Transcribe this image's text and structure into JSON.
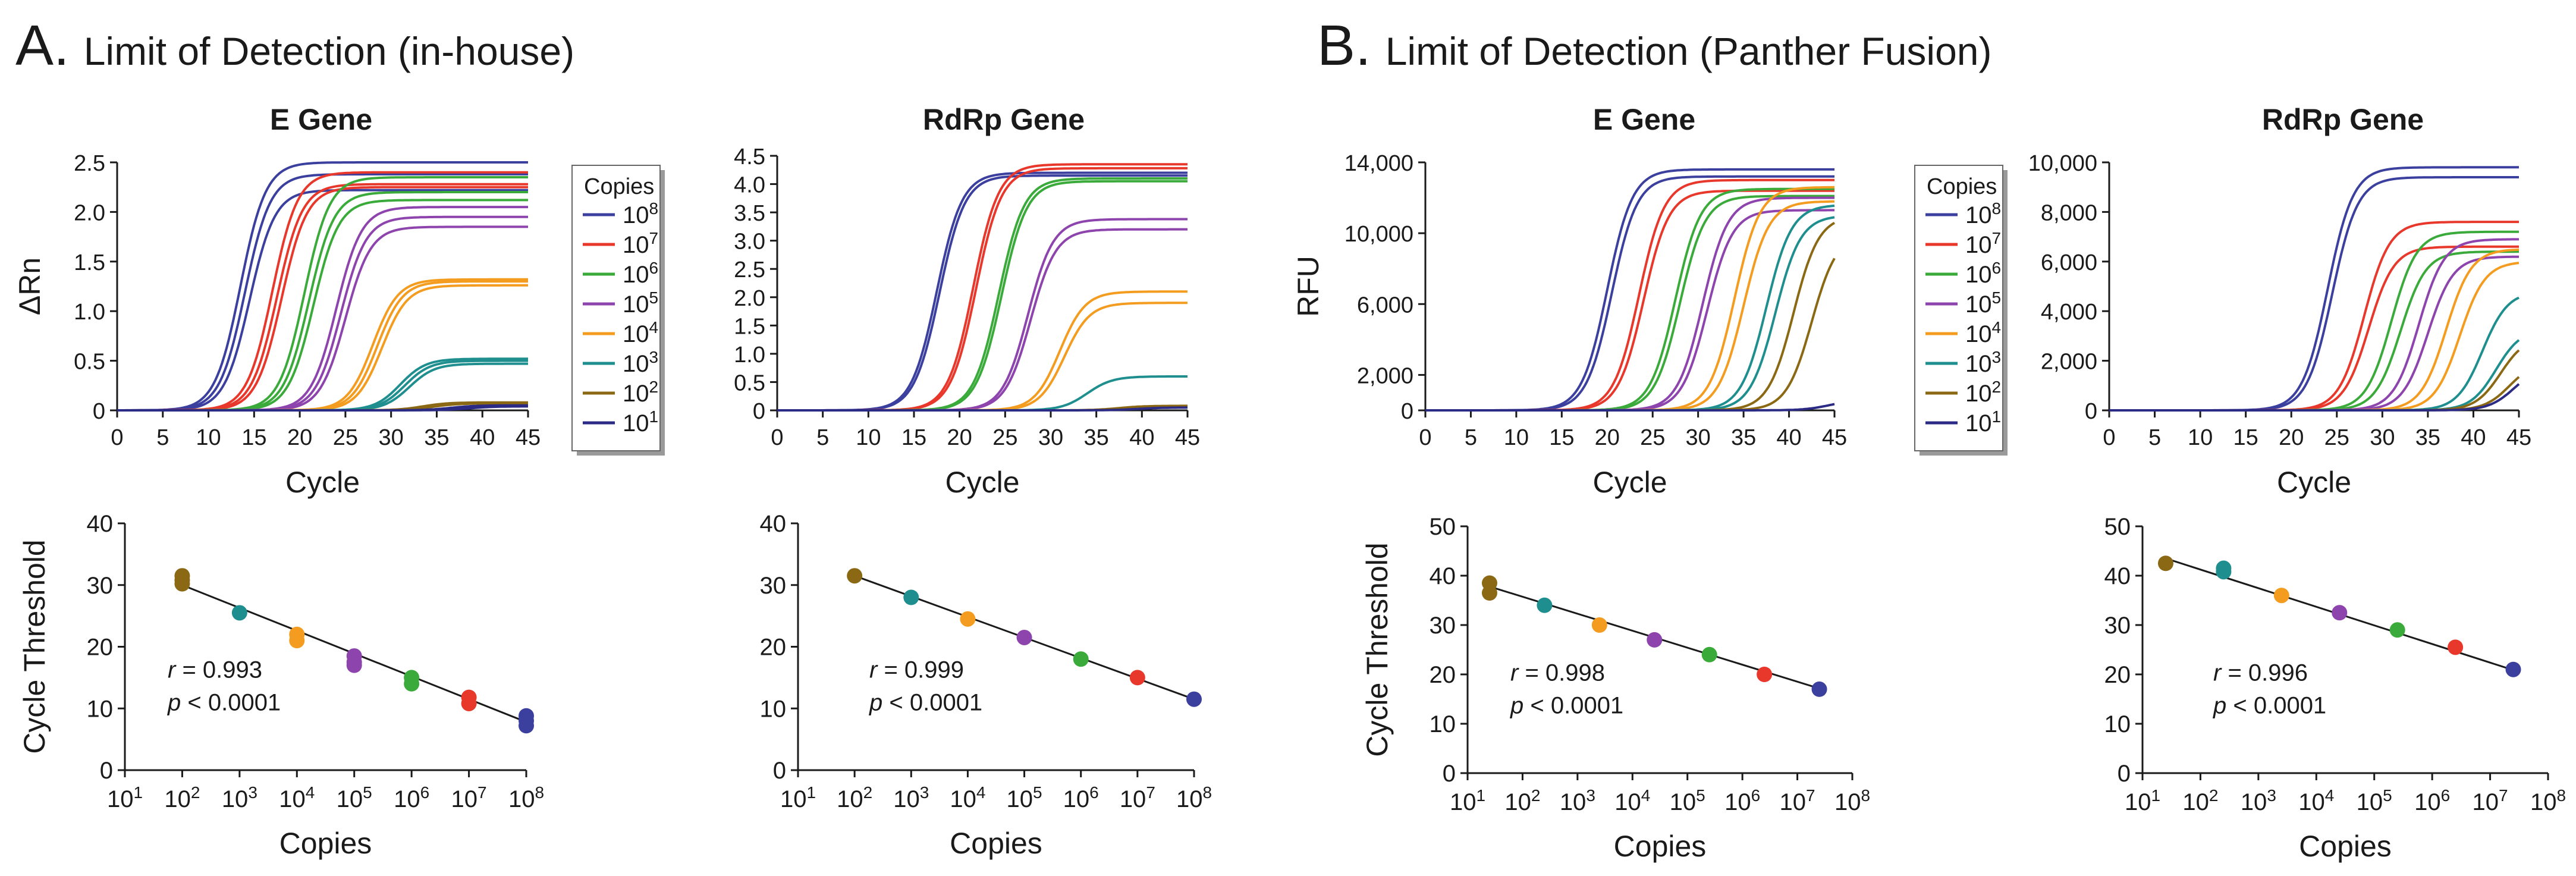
{
  "panels": [
    {
      "letter": "A.",
      "title": "Limit of Detection (in-house)"
    },
    {
      "letter": "B.",
      "title": "Limit of Detection (Panther Fusion)"
    }
  ],
  "legend_title": "Copies",
  "legend_entries": [
    "10^8",
    "10^7",
    "10^6",
    "10^5",
    "10^4",
    "10^3",
    "10^2",
    "10^1"
  ],
  "series_colors": {
    "10^8": "#3b3f9e",
    "10^7": "#e8382c",
    "10^6": "#3aaa3a",
    "10^5": "#8e44ad",
    "10^4": "#f39c1f",
    "10^3": "#1f8e8e",
    "10^2": "#8b6914",
    "10^1": "#2b2b85"
  },
  "chart_data": [
    {
      "id": "a-egene-amp",
      "type": "line",
      "title": "E Gene",
      "xlabel": "Cycle",
      "ylabel": "ΔRn",
      "xlim": [
        0,
        45
      ],
      "ylim": [
        0,
        2.5
      ],
      "xticks": [
        0,
        5,
        10,
        15,
        20,
        25,
        30,
        35,
        40,
        45
      ],
      "yticks": [
        0,
        0.5,
        1.0,
        1.5,
        2.0,
        2.5
      ],
      "ytick_labels": [
        "0",
        "0.5",
        "1.0",
        "1.5",
        "2.0",
        "2.5"
      ],
      "series": [
        {
          "name": "10^8",
          "replicates": [
            {
              "ct": 13.5,
              "plateau": 2.5
            },
            {
              "ct": 14.0,
              "plateau": 2.38
            },
            {
              "ct": 14.5,
              "plateau": 2.22
            }
          ]
        },
        {
          "name": "10^7",
          "replicates": [
            {
              "ct": 17.0,
              "plateau": 2.4
            },
            {
              "ct": 17.5,
              "plateau": 2.28
            },
            {
              "ct": 18.0,
              "plateau": 2.25
            }
          ]
        },
        {
          "name": "10^6",
          "replicates": [
            {
              "ct": 20.5,
              "plateau": 2.35
            },
            {
              "ct": 21.0,
              "plateau": 2.2
            },
            {
              "ct": 21.5,
              "plateau": 2.12
            }
          ]
        },
        {
          "name": "10^5",
          "replicates": [
            {
              "ct": 24.0,
              "plateau": 2.05
            },
            {
              "ct": 24.5,
              "plateau": 1.95
            },
            {
              "ct": 25.0,
              "plateau": 1.85
            }
          ]
        },
        {
          "name": "10^4",
          "replicates": [
            {
              "ct": 28.0,
              "plateau": 1.32
            },
            {
              "ct": 28.5,
              "plateau": 1.3
            },
            {
              "ct": 29.0,
              "plateau": 1.26
            }
          ]
        },
        {
          "name": "10^3",
          "replicates": [
            {
              "ct": 31.0,
              "plateau": 0.52
            },
            {
              "ct": 31.5,
              "plateau": 0.5
            },
            {
              "ct": 32.0,
              "plateau": 0.47
            }
          ]
        },
        {
          "name": "10^2",
          "replicates": [
            {
              "ct": 33.5,
              "plateau": 0.08
            },
            {
              "ct": 34.5,
              "plateau": 0.07
            }
          ]
        },
        {
          "name": "10^1",
          "replicates": [
            {
              "ct": 36.5,
              "plateau": 0.05
            },
            {
              "ct": 38.5,
              "plateau": 0.04
            }
          ]
        }
      ]
    },
    {
      "id": "a-rdrp-amp",
      "type": "line",
      "title": "RdRp Gene",
      "xlabel": "Cycle",
      "ylabel": "",
      "xlim": [
        0,
        45
      ],
      "ylim": [
        0,
        4.5
      ],
      "xticks": [
        0,
        5,
        10,
        15,
        20,
        25,
        30,
        35,
        40,
        45
      ],
      "yticks": [
        0,
        0.5,
        1.0,
        1.5,
        2.0,
        2.5,
        3.0,
        3.5,
        4.0,
        4.5
      ],
      "ytick_labels": [
        "0",
        "0.5",
        "1.0",
        "1.5",
        "2.0",
        "2.5",
        "3.0",
        "3.5",
        "4.0",
        "4.5"
      ],
      "series": [
        {
          "name": "10^8",
          "replicates": [
            {
              "ct": 17.5,
              "plateau": 4.2
            },
            {
              "ct": 17.8,
              "plateau": 4.15
            }
          ]
        },
        {
          "name": "10^7",
          "replicates": [
            {
              "ct": 21.5,
              "plateau": 4.35
            },
            {
              "ct": 21.8,
              "plateau": 4.28
            }
          ]
        },
        {
          "name": "10^6",
          "replicates": [
            {
              "ct": 24.3,
              "plateau": 4.1
            },
            {
              "ct": 24.6,
              "plateau": 4.05
            }
          ]
        },
        {
          "name": "10^5",
          "replicates": [
            {
              "ct": 27.5,
              "plateau": 3.38
            },
            {
              "ct": 27.8,
              "plateau": 3.2
            }
          ]
        },
        {
          "name": "10^4",
          "replicates": [
            {
              "ct": 31.0,
              "plateau": 2.1
            },
            {
              "ct": 31.5,
              "plateau": 1.9
            }
          ]
        },
        {
          "name": "10^3",
          "replicates": [
            {
              "ct": 34.0,
              "plateau": 0.6
            }
          ]
        },
        {
          "name": "10^2",
          "replicates": [
            {
              "ct": 37.5,
              "plateau": 0.08
            }
          ]
        },
        {
          "name": "10^1",
          "replicates": [
            {
              "ct": 39.5,
              "plateau": 0.05
            }
          ]
        }
      ]
    },
    {
      "id": "b-egene-amp",
      "type": "line",
      "title": "E Gene",
      "xlabel": "Cycle",
      "ylabel": "RFU",
      "xlim": [
        0,
        45
      ],
      "ylim": [
        0,
        14000
      ],
      "xticks": [
        0,
        5,
        10,
        15,
        20,
        25,
        30,
        35,
        40,
        45
      ],
      "yticks": [
        0,
        2000,
        6000,
        10000,
        14000
      ],
      "ytick_labels": [
        "0",
        "2,000",
        "6,000",
        "10,000",
        "14,000"
      ],
      "series": [
        {
          "name": "10^8",
          "replicates": [
            {
              "ct": 20.0,
              "plateau": 13600
            },
            {
              "ct": 20.5,
              "plateau": 13200
            }
          ]
        },
        {
          "name": "10^7",
          "replicates": [
            {
              "ct": 23.5,
              "plateau": 13000
            },
            {
              "ct": 24.0,
              "plateau": 12400
            }
          ]
        },
        {
          "name": "10^6",
          "replicates": [
            {
              "ct": 27.5,
              "plateau": 12500
            },
            {
              "ct": 28.0,
              "plateau": 12100
            }
          ]
        },
        {
          "name": "10^5",
          "replicates": [
            {
              "ct": 30.5,
              "plateau": 12000
            },
            {
              "ct": 31.0,
              "plateau": 11300
            }
          ]
        },
        {
          "name": "10^4",
          "replicates": [
            {
              "ct": 34.0,
              "plateau": 12600
            },
            {
              "ct": 35.0,
              "plateau": 11800
            }
          ]
        },
        {
          "name": "10^3",
          "replicates": [
            {
              "ct": 37.5,
              "plateau": 11600
            },
            {
              "ct": 38.5,
              "plateau": 11000
            }
          ]
        },
        {
          "name": "10^2",
          "replicates": [
            {
              "ct": 40.5,
              "plateau": 11000
            },
            {
              "ct": 42.5,
              "plateau": 10000
            }
          ]
        },
        {
          "name": "10^1",
          "replicates": [
            {
              "ct": 44.5,
              "plateau": 600
            }
          ]
        }
      ]
    },
    {
      "id": "b-rdrp-amp",
      "type": "line",
      "title": "RdRp Gene",
      "xlabel": "Cycle",
      "ylabel": "",
      "xlim": [
        0,
        45
      ],
      "ylim": [
        0,
        10000
      ],
      "xticks": [
        0,
        5,
        10,
        15,
        20,
        25,
        30,
        35,
        40,
        45
      ],
      "yticks": [
        0,
        2000,
        4000,
        6000,
        8000,
        10000
      ],
      "ytick_labels": [
        "0",
        "2,000",
        "4,000",
        "6,000",
        "8,000",
        "10,000"
      ],
      "series": [
        {
          "name": "10^8",
          "replicates": [
            {
              "ct": 24.0,
              "plateau": 9800
            },
            {
              "ct": 24.5,
              "plateau": 9400
            }
          ]
        },
        {
          "name": "10^7",
          "replicates": [
            {
              "ct": 28.0,
              "plateau": 7600
            },
            {
              "ct": 28.5,
              "plateau": 6600
            }
          ]
        },
        {
          "name": "10^6",
          "replicates": [
            {
              "ct": 31.0,
              "plateau": 7200
            },
            {
              "ct": 32.0,
              "plateau": 6400
            }
          ]
        },
        {
          "name": "10^5",
          "replicates": [
            {
              "ct": 34.0,
              "plateau": 6900
            },
            {
              "ct": 35.0,
              "plateau": 6200
            }
          ]
        },
        {
          "name": "10^4",
          "replicates": [
            {
              "ct": 37.0,
              "plateau": 6500
            },
            {
              "ct": 38.5,
              "plateau": 6000
            }
          ]
        },
        {
          "name": "10^3",
          "replicates": [
            {
              "ct": 41.0,
              "plateau": 4800
            },
            {
              "ct": 42.5,
              "plateau": 3300
            }
          ]
        },
        {
          "name": "10^2",
          "replicates": [
            {
              "ct": 43.0,
              "plateau": 3000
            },
            {
              "ct": 44.0,
              "plateau": 2000
            }
          ]
        },
        {
          "name": "10^1",
          "replicates": [
            {
              "ct": 44.5,
              "plateau": 1800
            }
          ]
        }
      ]
    },
    {
      "id": "a-egene-std",
      "type": "scatter",
      "xlabel": "Copies",
      "ylabel": "Cycle Threshold",
      "xscale": "log10",
      "xlim": [
        1,
        8
      ],
      "ylim": [
        0,
        40
      ],
      "xtick_exponents": [
        1,
        2,
        3,
        4,
        5,
        6,
        7,
        8
      ],
      "yticks": [
        0,
        10,
        20,
        30,
        40
      ],
      "fit": {
        "x": [
          2,
          8
        ],
        "y": [
          30.0,
          7.8
        ]
      },
      "stats": {
        "r": "= 0.993",
        "p": "< 0.0001"
      },
      "points": [
        {
          "series": "10^2",
          "log10_copies": 2,
          "ct": [
            31.5,
            30.8,
            30.2
          ]
        },
        {
          "series": "10^3",
          "log10_copies": 3,
          "ct": [
            25.5
          ]
        },
        {
          "series": "10^4",
          "log10_copies": 4,
          "ct": [
            22.0,
            21.0
          ]
        },
        {
          "series": "10^5",
          "log10_copies": 5,
          "ct": [
            18.5,
            17.5,
            17.0
          ]
        },
        {
          "series": "10^6",
          "log10_copies": 6,
          "ct": [
            15.0,
            14.0
          ]
        },
        {
          "series": "10^7",
          "log10_copies": 7,
          "ct": [
            11.8,
            10.8
          ]
        },
        {
          "series": "10^8",
          "log10_copies": 8,
          "ct": [
            8.8,
            8.0,
            7.2
          ]
        }
      ]
    },
    {
      "id": "a-rdrp-std",
      "type": "scatter",
      "xlabel": "Copies",
      "ylabel": "",
      "xscale": "log10",
      "xlim": [
        1,
        8
      ],
      "ylim": [
        0,
        40
      ],
      "xtick_exponents": [
        1,
        2,
        3,
        4,
        5,
        6,
        7,
        8
      ],
      "yticks": [
        0,
        10,
        20,
        30,
        40
      ],
      "fit": {
        "x": [
          2,
          8
        ],
        "y": [
          31.5,
          11.5
        ]
      },
      "stats": {
        "r": "= 0.999",
        "p": "< 0.0001"
      },
      "points": [
        {
          "series": "10^2",
          "log10_copies": 2,
          "ct": [
            31.5
          ]
        },
        {
          "series": "10^3",
          "log10_copies": 3,
          "ct": [
            28.0
          ]
        },
        {
          "series": "10^4",
          "log10_copies": 4,
          "ct": [
            24.5
          ]
        },
        {
          "series": "10^5",
          "log10_copies": 5,
          "ct": [
            21.5
          ]
        },
        {
          "series": "10^6",
          "log10_copies": 6,
          "ct": [
            18.0
          ]
        },
        {
          "series": "10^7",
          "log10_copies": 7,
          "ct": [
            15.0
          ]
        },
        {
          "series": "10^8",
          "log10_copies": 8,
          "ct": [
            11.5
          ]
        }
      ]
    },
    {
      "id": "b-egene-std",
      "type": "scatter",
      "xlabel": "Copies",
      "ylabel": "Cycle Threshold",
      "xscale": "log10",
      "xlim": [
        1,
        8
      ],
      "ylim": [
        0,
        50
      ],
      "xtick_exponents": [
        1,
        2,
        3,
        4,
        5,
        6,
        7,
        8
      ],
      "yticks": [
        0,
        10,
        20,
        30,
        40,
        50
      ],
      "fit": {
        "x": [
          1.4,
          7.5
        ],
        "y": [
          37.8,
          16.8
        ]
      },
      "stats": {
        "r": "= 0.998",
        "p": "< 0.0001"
      },
      "points": [
        {
          "series": "10^2",
          "log10_copies": 1.4,
          "ct": [
            38.5,
            36.5
          ]
        },
        {
          "series": "10^3",
          "log10_copies": 2.4,
          "ct": [
            34.0
          ]
        },
        {
          "series": "10^4",
          "log10_copies": 3.4,
          "ct": [
            30.0
          ]
        },
        {
          "series": "10^5",
          "log10_copies": 4.4,
          "ct": [
            27.0
          ]
        },
        {
          "series": "10^6",
          "log10_copies": 5.4,
          "ct": [
            24.0
          ]
        },
        {
          "series": "10^7",
          "log10_copies": 6.4,
          "ct": [
            20.0
          ]
        },
        {
          "series": "10^8",
          "log10_copies": 7.4,
          "ct": [
            17.0
          ]
        }
      ]
    },
    {
      "id": "b-rdrp-std",
      "type": "scatter",
      "xlabel": "Copies",
      "ylabel": "",
      "xscale": "log10",
      "xlim": [
        1,
        8
      ],
      "ylim": [
        0,
        50
      ],
      "xtick_exponents": [
        1,
        2,
        3,
        4,
        5,
        6,
        7,
        8
      ],
      "yticks": [
        0,
        10,
        20,
        30,
        40,
        50
      ],
      "fit": {
        "x": [
          1.4,
          7.5
        ],
        "y": [
          43.5,
          20.5
        ]
      },
      "stats": {
        "r": "= 0.996",
        "p": "< 0.0001"
      },
      "points": [
        {
          "series": "10^2",
          "log10_copies": 1.4,
          "ct": [
            42.5
          ]
        },
        {
          "series": "10^3",
          "log10_copies": 2.4,
          "ct": [
            41.5,
            40.8
          ]
        },
        {
          "series": "10^4",
          "log10_copies": 3.4,
          "ct": [
            36.0
          ]
        },
        {
          "series": "10^5",
          "log10_copies": 4.4,
          "ct": [
            32.5
          ]
        },
        {
          "series": "10^6",
          "log10_copies": 5.4,
          "ct": [
            29.0
          ]
        },
        {
          "series": "10^7",
          "log10_copies": 6.4,
          "ct": [
            25.5
          ]
        },
        {
          "series": "10^8",
          "log10_copies": 7.4,
          "ct": [
            21.0
          ]
        }
      ]
    }
  ]
}
